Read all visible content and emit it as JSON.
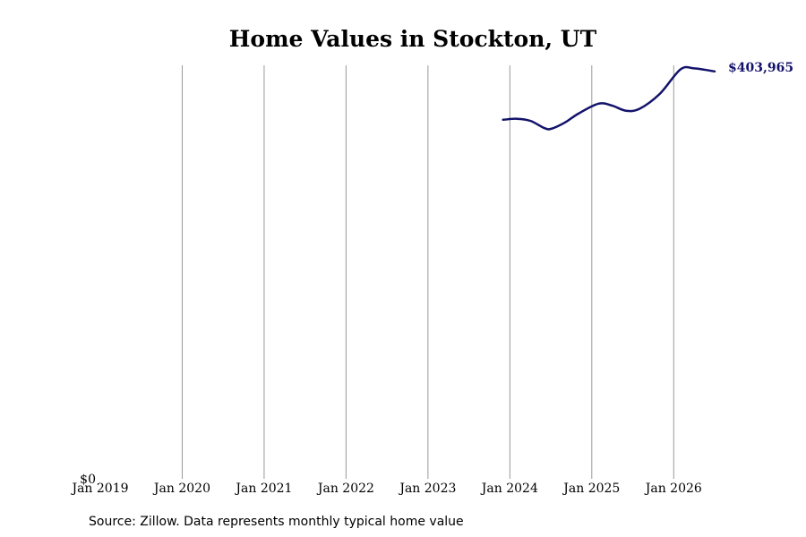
{
  "chart_data": {
    "type": "line",
    "title": "Home Values in Stockton, UT",
    "xlabel": "",
    "ylabel": "",
    "x_tick_labels": [
      "Jan 2019",
      "Jan 2020",
      "Jan 2021",
      "Jan 2022",
      "Jan 2023",
      "Jan 2024",
      "Jan 2025",
      "Jan 2026"
    ],
    "x_range": [
      "2019-01",
      "2026-07"
    ],
    "y_tick_labels": [
      "$0"
    ],
    "ylim": [
      0,
      410000
    ],
    "grid": "vertical at January of each year",
    "legend": "none",
    "series": [
      {
        "color": "#12126b",
        "end_label": "$403,965",
        "points": [
          {
            "date": "2023-12",
            "value": 356000
          },
          {
            "date": "2024-02",
            "value": 357000
          },
          {
            "date": "2024-04",
            "value": 355000
          },
          {
            "date": "2024-06",
            "value": 348000
          },
          {
            "date": "2024-07",
            "value": 347000
          },
          {
            "date": "2024-09",
            "value": 353000
          },
          {
            "date": "2024-11",
            "value": 362000
          },
          {
            "date": "2025-02",
            "value": 372000
          },
          {
            "date": "2025-04",
            "value": 370000
          },
          {
            "date": "2025-06",
            "value": 365000
          },
          {
            "date": "2025-08",
            "value": 367000
          },
          {
            "date": "2025-11",
            "value": 382000
          },
          {
            "date": "2026-02",
            "value": 406000
          },
          {
            "date": "2026-04",
            "value": 407000
          },
          {
            "date": "2026-07",
            "value": 403965
          }
        ]
      }
    ]
  },
  "source_note": "Source: Zillow. Data represents monthly typical home value",
  "colors": {
    "series": "#12126b",
    "grid": "#999999"
  }
}
